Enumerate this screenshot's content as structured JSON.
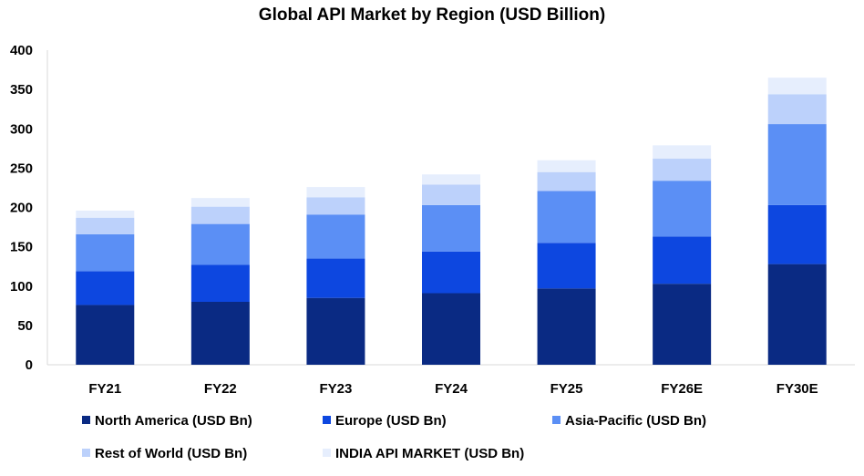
{
  "chart_data": {
    "type": "bar",
    "stacked": true,
    "title": "Global API Market by Region (USD Billion)",
    "xlabel": "",
    "ylabel": "",
    "ylim": [
      0,
      400
    ],
    "yticks": [
      0,
      50,
      100,
      150,
      200,
      250,
      300,
      350,
      400
    ],
    "grid": false,
    "legend_position": "bottom",
    "categories": [
      "FY21",
      "FY22",
      "FY23",
      "FY24",
      "FY25",
      "FY26E",
      "FY30E"
    ],
    "series": [
      {
        "name": "North America (USD Bn)",
        "color": "#0a2a83",
        "values": [
          76,
          80,
          85,
          91,
          97,
          103,
          128
        ]
      },
      {
        "name": "Europe (USD Bn)",
        "color": "#0d47e0",
        "values": [
          43,
          47,
          50,
          53,
          58,
          60,
          75
        ]
      },
      {
        "name": "Asia-Pacific (USD Bn)",
        "color": "#5b8ff5",
        "values": [
          47,
          52,
          56,
          59,
          66,
          71,
          103
        ]
      },
      {
        "name": "Rest of World (USD Bn)",
        "color": "#bcd1fb",
        "values": [
          21,
          22,
          22,
          26,
          24,
          28,
          38
        ]
      },
      {
        "name": "INDIA API MARKET (USD Bn)",
        "color": "#e6eefd",
        "values": [
          9,
          11,
          13,
          13,
          15,
          17,
          21
        ]
      }
    ]
  }
}
